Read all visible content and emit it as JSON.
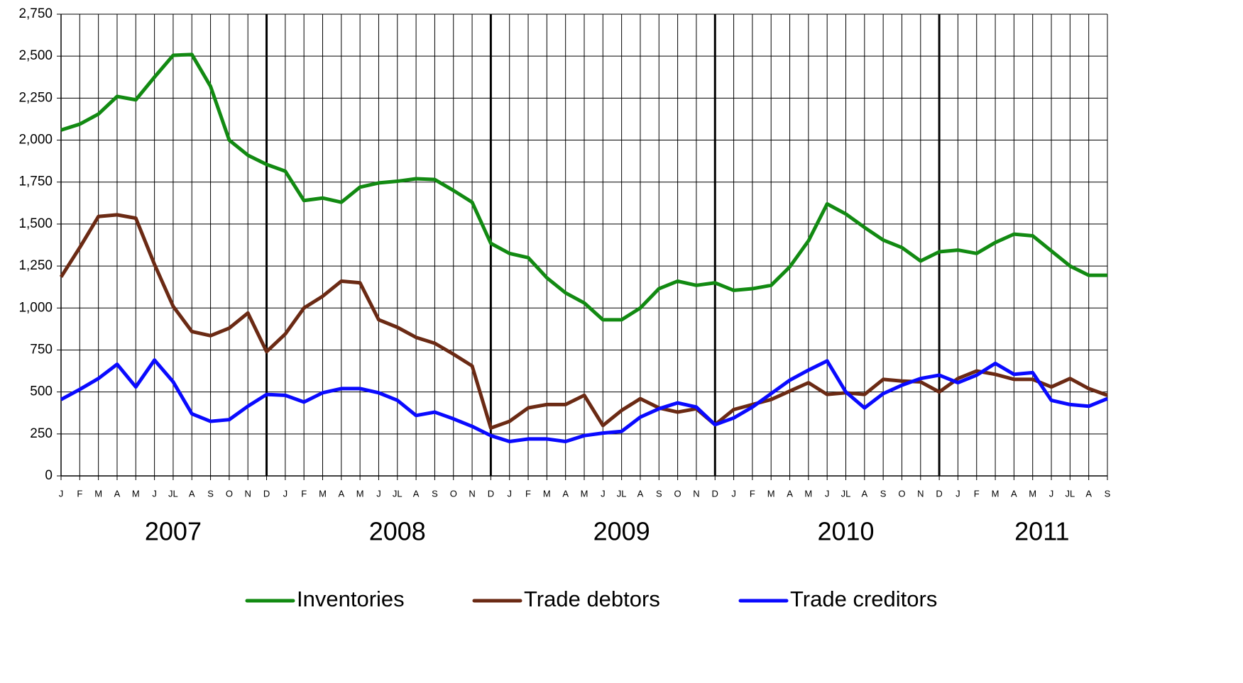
{
  "chart_data": {
    "type": "line",
    "categories": [
      "J",
      "F",
      "M",
      "A",
      "M",
      "J",
      "JL",
      "A",
      "S",
      "O",
      "N",
      "D",
      "J",
      "F",
      "M",
      "A",
      "M",
      "J",
      "JL",
      "A",
      "S",
      "O",
      "N",
      "D",
      "J",
      "F",
      "M",
      "A",
      "M",
      "J",
      "JL",
      "A",
      "S",
      "O",
      "N",
      "D",
      "J",
      "F",
      "M",
      "A",
      "M",
      "J",
      "JL",
      "A",
      "S",
      "O",
      "N",
      "D",
      "J",
      "F",
      "M",
      "A",
      "M",
      "J",
      "JL",
      "A",
      "S"
    ],
    "years": [
      "2007",
      "2008",
      "2009",
      "2010",
      "2011"
    ],
    "series": [
      {
        "name": "Inventories",
        "color": "#128a12",
        "values": [
          2060,
          2095,
          2155,
          2260,
          2240,
          2375,
          2505,
          2510,
          2320,
          2000,
          1910,
          1855,
          1815,
          1640,
          1655,
          1630,
          1720,
          1745,
          1755,
          1770,
          1765,
          1700,
          1630,
          1385,
          1325,
          1300,
          1180,
          1090,
          1030,
          930,
          930,
          1000,
          1115,
          1160,
          1135,
          1150,
          1105,
          1115,
          1135,
          1245,
          1400,
          1620,
          1560,
          1480,
          1405,
          1360,
          1280,
          1335,
          1345,
          1325,
          1390,
          1440,
          1430,
          1340,
          1250,
          1195,
          1195
        ]
      },
      {
        "name": "Trade debtors",
        "color": "#6b2a14",
        "values": [
          1185,
          1360,
          1545,
          1555,
          1535,
          1260,
          1010,
          860,
          835,
          880,
          970,
          740,
          845,
          1000,
          1070,
          1160,
          1150,
          930,
          885,
          825,
          790,
          725,
          655,
          285,
          325,
          405,
          425,
          425,
          480,
          300,
          390,
          460,
          405,
          380,
          400,
          305,
          395,
          425,
          455,
          505,
          555,
          485,
          495,
          485,
          575,
          565,
          560,
          500,
          580,
          625,
          605,
          575,
          575,
          530,
          580,
          520,
          480
        ]
      },
      {
        "name": "Trade creditors",
        "color": "#0a0aff",
        "values": [
          455,
          515,
          580,
          665,
          530,
          690,
          560,
          370,
          325,
          335,
          415,
          485,
          480,
          440,
          495,
          520,
          520,
          495,
          450,
          360,
          380,
          340,
          295,
          240,
          205,
          220,
          220,
          205,
          240,
          255,
          265,
          350,
          400,
          435,
          410,
          305,
          345,
          410,
          490,
          570,
          630,
          685,
          500,
          405,
          490,
          540,
          580,
          600,
          555,
          600,
          670,
          605,
          615,
          450,
          425,
          415,
          460
        ]
      }
    ],
    "ylim": [
      0,
      2750
    ],
    "yticks": [
      0,
      250,
      500,
      750,
      {
        "value": 1000,
        "label": "1,000"
      },
      {
        "value": 1250,
        "label": "1,250"
      },
      {
        "value": 1500,
        "label": "1,500"
      },
      {
        "value": 1750,
        "label": "1,750"
      },
      {
        "value": 2000,
        "label": "2,000"
      },
      {
        "value": 2250,
        "label": "2,250"
      },
      {
        "value": 2500,
        "label": "2,500"
      },
      {
        "value": 2750,
        "label": "2,750"
      }
    ],
    "grid": true,
    "legend": "bottom"
  }
}
